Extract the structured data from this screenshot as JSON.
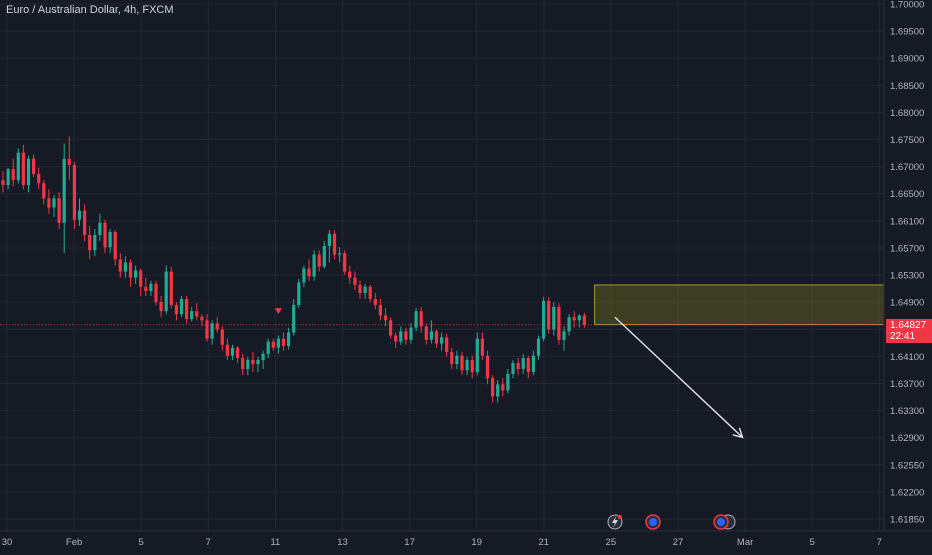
{
  "header": {
    "title": "Euro / Australian Dollar, 4h, FXCM"
  },
  "colors": {
    "background": "#161a25",
    "grid": "#232733",
    "up": "#22ab94",
    "down": "#f23645",
    "axis_text": "#b2b5be",
    "zone_fill": "#6b6a1e",
    "zone_border": "#a39d2a",
    "arrow": "#e6e6e6"
  },
  "price_tag": {
    "price": "1.64827",
    "countdown": "22:41"
  },
  "chart_data": {
    "type": "candlestick",
    "title": "Euro / Australian Dollar, 4h, FXCM",
    "ylim": [
      1.6164,
      1.7009
    ],
    "y_ticks": [
      "1.70000",
      "1.69500",
      "1.69000",
      "1.68500",
      "1.68000",
      "1.67500",
      "1.67000",
      "1.66500",
      "1.66100",
      "1.65700",
      "1.65300",
      "1.64900",
      "1.64500",
      "1.64100",
      "1.63700",
      "1.63300",
      "1.62900",
      "1.62550",
      "1.62200",
      "1.61850"
    ],
    "x_ticks": [
      "30",
      "Feb",
      "5",
      "7",
      "11",
      "13",
      "17",
      "19",
      "21",
      "25",
      "27",
      "Mar",
      "5",
      "7"
    ],
    "grid": true,
    "last_price": 1.64827,
    "candles": [
      [
        1.672,
        1.6735,
        1.67,
        1.6712
      ],
      [
        1.6712,
        1.674,
        1.6705,
        1.6738
      ],
      [
        1.6738,
        1.6755,
        1.671,
        1.672
      ],
      [
        1.672,
        1.6772,
        1.6715,
        1.6765
      ],
      [
        1.6765,
        1.6778,
        1.6705,
        1.6712
      ],
      [
        1.6712,
        1.676,
        1.67,
        1.6755
      ],
      [
        1.6755,
        1.6762,
        1.6725,
        1.673
      ],
      [
        1.673,
        1.674,
        1.6705,
        1.6715
      ],
      [
        1.6715,
        1.672,
        1.668,
        1.669
      ],
      [
        1.669,
        1.6705,
        1.6665,
        1.6675
      ],
      [
        1.6675,
        1.6695,
        1.666,
        1.669
      ],
      [
        1.669,
        1.67,
        1.664,
        1.665
      ],
      [
        1.665,
        1.678,
        1.66,
        1.6755
      ],
      [
        1.6755,
        1.6792,
        1.672,
        1.6745
      ],
      [
        1.6745,
        1.675,
        1.664,
        1.6655
      ],
      [
        1.6655,
        1.669,
        1.6645,
        1.667
      ],
      [
        1.667,
        1.668,
        1.662,
        1.663
      ],
      [
        1.663,
        1.6645,
        1.659,
        1.6605
      ],
      [
        1.6605,
        1.664,
        1.6595,
        1.663
      ],
      [
        1.663,
        1.6665,
        1.662,
        1.665
      ],
      [
        1.665,
        1.6655,
        1.66,
        1.661
      ],
      [
        1.661,
        1.664,
        1.66,
        1.6635
      ],
      [
        1.6635,
        1.6638,
        1.658,
        1.659
      ],
      [
        1.659,
        1.66,
        1.656,
        1.657
      ],
      [
        1.657,
        1.6595,
        1.656,
        1.6585
      ],
      [
        1.6585,
        1.659,
        1.6545,
        1.656
      ],
      [
        1.656,
        1.658,
        1.655,
        1.6572
      ],
      [
        1.6572,
        1.6575,
        1.653,
        1.6545
      ],
      [
        1.6545,
        1.656,
        1.653,
        1.6538
      ],
      [
        1.6538,
        1.6555,
        1.653,
        1.655
      ],
      [
        1.655,
        1.6555,
        1.6515,
        1.652
      ],
      [
        1.652,
        1.653,
        1.6495,
        1.6505
      ],
      [
        1.6505,
        1.658,
        1.65,
        1.657
      ],
      [
        1.657,
        1.6578,
        1.651,
        1.6515
      ],
      [
        1.6515,
        1.652,
        1.649,
        1.65
      ],
      [
        1.65,
        1.653,
        1.6495,
        1.6525
      ],
      [
        1.6525,
        1.653,
        1.6485,
        1.6492
      ],
      [
        1.6492,
        1.6512,
        1.6488,
        1.6505
      ],
      [
        1.6505,
        1.6518,
        1.649,
        1.6496
      ],
      [
        1.6496,
        1.65,
        1.648,
        1.649
      ],
      [
        1.649,
        1.65,
        1.6455,
        1.646
      ],
      [
        1.646,
        1.649,
        1.645,
        1.6485
      ],
      [
        1.6485,
        1.6495,
        1.647,
        1.6475
      ],
      [
        1.6475,
        1.648,
        1.644,
        1.645
      ],
      [
        1.645,
        1.646,
        1.6425,
        1.6432
      ],
      [
        1.6432,
        1.645,
        1.6425,
        1.6445
      ],
      [
        1.6445,
        1.6448,
        1.642,
        1.6428
      ],
      [
        1.6428,
        1.6435,
        1.64,
        1.641
      ],
      [
        1.641,
        1.643,
        1.64,
        1.6425
      ],
      [
        1.6425,
        1.6438,
        1.6405,
        1.6418
      ],
      [
        1.6418,
        1.643,
        1.6405,
        1.6425
      ],
      [
        1.6425,
        1.644,
        1.641,
        1.6435
      ],
      [
        1.6435,
        1.646,
        1.6428,
        1.6455
      ],
      [
        1.6455,
        1.646,
        1.644,
        1.6445
      ],
      [
        1.6445,
        1.6465,
        1.6435,
        1.646
      ],
      [
        1.646,
        1.647,
        1.644,
        1.6448
      ],
      [
        1.6448,
        1.6478,
        1.6442,
        1.647
      ],
      [
        1.647,
        1.6525,
        1.6465,
        1.6515
      ],
      [
        1.6515,
        1.6558,
        1.651,
        1.6552
      ],
      [
        1.6552,
        1.658,
        1.6545,
        1.6575
      ],
      [
        1.6575,
        1.659,
        1.6555,
        1.6562
      ],
      [
        1.6562,
        1.6605,
        1.6555,
        1.6598
      ],
      [
        1.6598,
        1.6605,
        1.657,
        1.6578
      ],
      [
        1.6578,
        1.662,
        1.6575,
        1.6612
      ],
      [
        1.6612,
        1.6638,
        1.6585,
        1.6632
      ],
      [
        1.6632,
        1.6638,
        1.659,
        1.6598
      ],
      [
        1.6598,
        1.661,
        1.6585,
        1.66
      ],
      [
        1.66,
        1.6605,
        1.6565,
        1.657
      ],
      [
        1.657,
        1.658,
        1.655,
        1.656
      ],
      [
        1.656,
        1.657,
        1.654,
        1.6548
      ],
      [
        1.6548,
        1.6555,
        1.6525,
        1.6535
      ],
      [
        1.6535,
        1.655,
        1.6525,
        1.6545
      ],
      [
        1.6545,
        1.6548,
        1.652,
        1.6525
      ],
      [
        1.6525,
        1.6535,
        1.6508,
        1.6515
      ],
      [
        1.6515,
        1.6525,
        1.649,
        1.6498
      ],
      [
        1.6498,
        1.651,
        1.648,
        1.649
      ],
      [
        1.649,
        1.6495,
        1.646,
        1.6465
      ],
      [
        1.6465,
        1.647,
        1.6445,
        1.6455
      ],
      [
        1.6455,
        1.648,
        1.645,
        1.6472
      ],
      [
        1.6472,
        1.6478,
        1.645,
        1.6458
      ],
      [
        1.6458,
        1.6485,
        1.6452,
        1.6478
      ],
      [
        1.6478,
        1.651,
        1.6472,
        1.6505
      ],
      [
        1.6505,
        1.6512,
        1.647,
        1.648
      ],
      [
        1.648,
        1.6485,
        1.645,
        1.6458
      ],
      [
        1.6458,
        1.649,
        1.6452,
        1.6472
      ],
      [
        1.6472,
        1.6475,
        1.6445,
        1.6452
      ],
      [
        1.6452,
        1.647,
        1.644,
        1.6462
      ],
      [
        1.6462,
        1.6468,
        1.643,
        1.6438
      ],
      [
        1.6438,
        1.6445,
        1.641,
        1.6418
      ],
      [
        1.6418,
        1.644,
        1.641,
        1.6432
      ],
      [
        1.6432,
        1.6438,
        1.64,
        1.6408
      ],
      [
        1.6408,
        1.643,
        1.64,
        1.6425
      ],
      [
        1.6425,
        1.6432,
        1.6395,
        1.6405
      ],
      [
        1.6405,
        1.647,
        1.64,
        1.646
      ],
      [
        1.646,
        1.647,
        1.6425,
        1.6432
      ],
      [
        1.6432,
        1.644,
        1.6385,
        1.6395
      ],
      [
        1.6395,
        1.64,
        1.6355,
        1.6365
      ],
      [
        1.6365,
        1.6392,
        1.6355,
        1.6385
      ],
      [
        1.6385,
        1.6395,
        1.6365,
        1.6375
      ],
      [
        1.6375,
        1.641,
        1.637,
        1.6402
      ],
      [
        1.6402,
        1.6425,
        1.6395,
        1.642
      ],
      [
        1.642,
        1.6428,
        1.64,
        1.641
      ],
      [
        1.641,
        1.6435,
        1.6402,
        1.6428
      ],
      [
        1.6428,
        1.6432,
        1.6395,
        1.6405
      ],
      [
        1.6405,
        1.644,
        1.64,
        1.6432
      ],
      [
        1.6432,
        1.6465,
        1.6425,
        1.646
      ],
      [
        1.646,
        1.6528,
        1.6455,
        1.6522
      ],
      [
        1.6522,
        1.6528,
        1.6468,
        1.6475
      ],
      [
        1.6475,
        1.652,
        1.6465,
        1.6512
      ],
      [
        1.6512,
        1.6518,
        1.645,
        1.6458
      ],
      [
        1.6458,
        1.648,
        1.644,
        1.6472
      ],
      [
        1.6472,
        1.65,
        1.6465,
        1.6495
      ],
      [
        1.6495,
        1.6505,
        1.6478,
        1.649
      ],
      [
        1.649,
        1.65,
        1.6478,
        1.6498
      ],
      [
        1.6498,
        1.6502,
        1.6478,
        1.6483
      ]
    ],
    "zone": {
      "x_start_index": 116,
      "x_end": "chart-right-edge",
      "top": 1.6548,
      "bottom": 1.6483
    },
    "annotations": [
      {
        "type": "arrow",
        "from": {
          "index": 120,
          "price": 1.6495
        },
        "to": {
          "index": 145,
          "price": 1.6298
        }
      },
      {
        "type": "marker",
        "index": 54,
        "price": 1.6505
      }
    ]
  }
}
